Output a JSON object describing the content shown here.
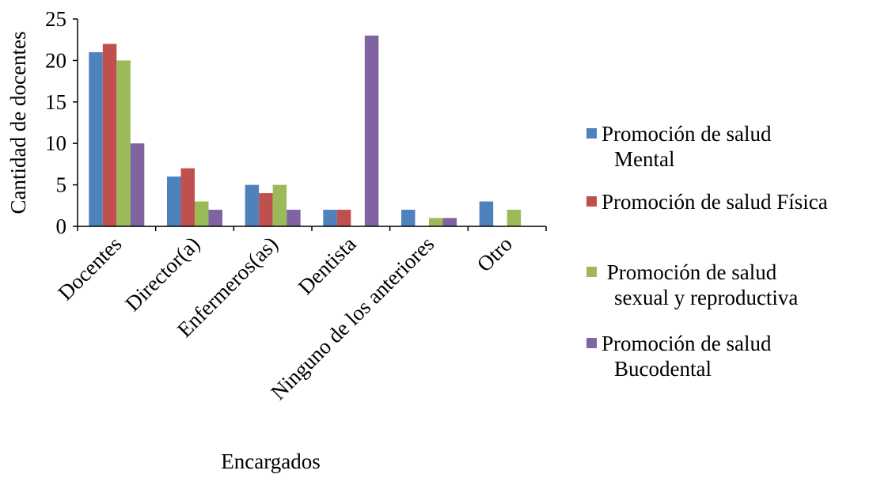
{
  "chart_data": {
    "type": "bar",
    "title": "",
    "xlabel": "Encargados",
    "ylabel": "Cantidad de docentes",
    "ylim": [
      0,
      25
    ],
    "yticks": [
      0,
      5,
      10,
      15,
      20,
      25
    ],
    "grid": false,
    "legend_position": "right",
    "categories": [
      "Docentes",
      "Director(a)",
      "Enfermeros(as)",
      "Dentista",
      "Ninguno de los anteriores",
      "Otro"
    ],
    "series": [
      {
        "name": "Promoción de salud Mental",
        "legend_lines": [
          "Promoción de salud",
          "Mental"
        ],
        "color": "#4F81BD",
        "values": [
          21,
          6,
          5,
          2,
          2,
          3
        ]
      },
      {
        "name": "Promoción de salud Física",
        "legend_lines": [
          "Promoción de salud Física"
        ],
        "color": "#C0504D",
        "values": [
          22,
          7,
          4,
          2,
          0,
          0
        ]
      },
      {
        "name": " Promoción de salud sexual y reproductiva",
        "legend_lines": [
          " Promoción de salud",
          "sexual y reproductiva"
        ],
        "color": "#9BBB59",
        "values": [
          20,
          3,
          5,
          0,
          1,
          2
        ]
      },
      {
        "name": "Promoción de salud Bucodental",
        "legend_lines": [
          "Promoción de salud",
          "Bucodental"
        ],
        "color": "#8064A2",
        "values": [
          10,
          2,
          2,
          23,
          1,
          0
        ]
      }
    ]
  }
}
